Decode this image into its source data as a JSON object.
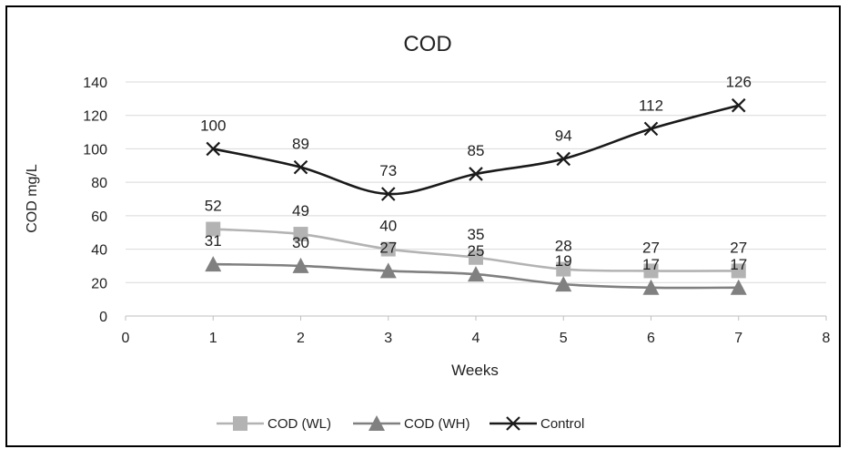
{
  "chart_data": {
    "type": "line",
    "title": "COD",
    "xlabel": "Weeks",
    "ylabel": "COD mg/L",
    "xlim": [
      0,
      8
    ],
    "ylim": [
      0,
      140
    ],
    "xticks": [
      0,
      1,
      2,
      3,
      4,
      5,
      6,
      7,
      8
    ],
    "yticks": [
      0,
      20,
      40,
      60,
      80,
      100,
      120,
      140
    ],
    "x": [
      1,
      2,
      3,
      4,
      5,
      6,
      7
    ],
    "grid": true,
    "legend_position": "bottom",
    "series": [
      {
        "name": "COD (WL)",
        "marker": "square",
        "color": "#b3b3b3",
        "values": [
          52,
          49,
          40,
          35,
          28,
          27,
          27
        ]
      },
      {
        "name": "COD (WH)",
        "marker": "triangle",
        "color": "#808080",
        "values": [
          31,
          30,
          27,
          25,
          19,
          17,
          17
        ]
      },
      {
        "name": "Control",
        "marker": "x",
        "color": "#1a1a1a",
        "values": [
          100,
          89,
          73,
          85,
          94,
          112,
          126
        ]
      }
    ]
  }
}
